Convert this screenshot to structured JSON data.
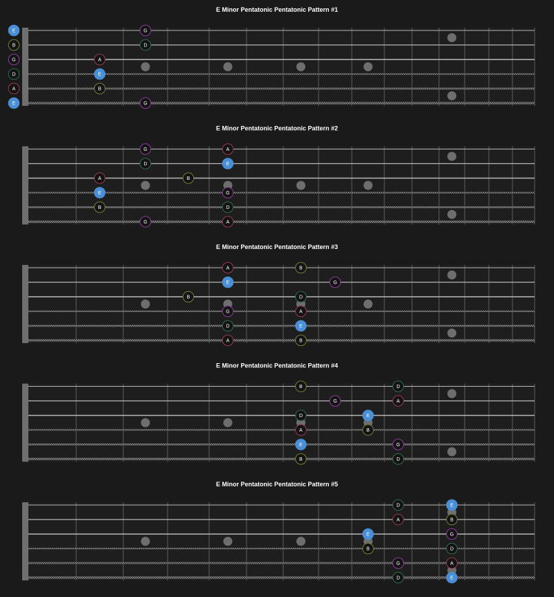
{
  "colors": {
    "background": "#1a1a1a",
    "fretboard": "#1e1e1e",
    "root_note": "#4a8fd6",
    "inlay_dot": "#6e6e6e",
    "nut": "#6f6f6f",
    "fret_line": "#5f5f5f",
    "string_line": "#b8b8b8",
    "note_fill": "#141414",
    "note_rings": {
      "E": "#4a8fd6",
      "G": "#8e3b9e",
      "A": "#9a3a4c",
      "B": "#7a7d34",
      "D": "#2f6d4a"
    }
  },
  "inlay_frets": [
    3,
    5,
    7,
    9,
    12
  ],
  "patterns": [
    {
      "title": "E Minor Pentatonic Pentatonic Pattern #1",
      "open_labels": [
        "E",
        "B",
        "G",
        "D",
        "A",
        "E"
      ],
      "notes": [
        {
          "string": 1,
          "fret": 3,
          "label": "G"
        },
        {
          "string": 2,
          "fret": 3,
          "label": "D"
        },
        {
          "string": 3,
          "fret": 2,
          "label": "A"
        },
        {
          "string": 4,
          "fret": 2,
          "label": "E",
          "root": true
        },
        {
          "string": 5,
          "fret": 2,
          "label": "B"
        },
        {
          "string": 6,
          "fret": 3,
          "label": "G"
        }
      ]
    },
    {
      "title": "E Minor Pentatonic Pentatonic Pattern #2",
      "notes": [
        {
          "string": 1,
          "fret": 3,
          "label": "G"
        },
        {
          "string": 1,
          "fret": 5,
          "label": "A"
        },
        {
          "string": 2,
          "fret": 3,
          "label": "D"
        },
        {
          "string": 2,
          "fret": 5,
          "label": "E",
          "root": true
        },
        {
          "string": 3,
          "fret": 2,
          "label": "A"
        },
        {
          "string": 3,
          "fret": 4,
          "label": "B"
        },
        {
          "string": 4,
          "fret": 2,
          "label": "E",
          "root": true
        },
        {
          "string": 4,
          "fret": 5,
          "label": "G"
        },
        {
          "string": 5,
          "fret": 2,
          "label": "B"
        },
        {
          "string": 5,
          "fret": 5,
          "label": "D"
        },
        {
          "string": 6,
          "fret": 3,
          "label": "G"
        },
        {
          "string": 6,
          "fret": 5,
          "label": "A"
        }
      ]
    },
    {
      "title": "E Minor Pentatonic Pentatonic Pattern #3",
      "notes": [
        {
          "string": 1,
          "fret": 5,
          "label": "A"
        },
        {
          "string": 1,
          "fret": 7,
          "label": "B"
        },
        {
          "string": 2,
          "fret": 5,
          "label": "E",
          "root": true
        },
        {
          "string": 2,
          "fret": 8,
          "label": "G"
        },
        {
          "string": 3,
          "fret": 4,
          "label": "B"
        },
        {
          "string": 3,
          "fret": 7,
          "label": "D"
        },
        {
          "string": 4,
          "fret": 5,
          "label": "G"
        },
        {
          "string": 4,
          "fret": 7,
          "label": "A"
        },
        {
          "string": 5,
          "fret": 5,
          "label": "D"
        },
        {
          "string": 5,
          "fret": 7,
          "label": "E",
          "root": true
        },
        {
          "string": 6,
          "fret": 5,
          "label": "A"
        },
        {
          "string": 6,
          "fret": 7,
          "label": "B"
        }
      ]
    },
    {
      "title": "E Minor Pentatonic Pentatonic Pattern #4",
      "notes": [
        {
          "string": 1,
          "fret": 7,
          "label": "B"
        },
        {
          "string": 1,
          "fret": 10,
          "label": "D"
        },
        {
          "string": 2,
          "fret": 8,
          "label": "G"
        },
        {
          "string": 2,
          "fret": 10,
          "label": "A"
        },
        {
          "string": 3,
          "fret": 7,
          "label": "D"
        },
        {
          "string": 3,
          "fret": 9,
          "label": "E",
          "root": true
        },
        {
          "string": 4,
          "fret": 7,
          "label": "A"
        },
        {
          "string": 4,
          "fret": 9,
          "label": "B"
        },
        {
          "string": 5,
          "fret": 7,
          "label": "E",
          "root": true
        },
        {
          "string": 5,
          "fret": 10,
          "label": "G"
        },
        {
          "string": 6,
          "fret": 7,
          "label": "B"
        },
        {
          "string": 6,
          "fret": 10,
          "label": "D"
        }
      ]
    },
    {
      "title": "E Minor Pentatonic Pentatonic Pattern #5",
      "notes": [
        {
          "string": 1,
          "fret": 10,
          "label": "D"
        },
        {
          "string": 1,
          "fret": 12,
          "label": "E",
          "root": true
        },
        {
          "string": 2,
          "fret": 10,
          "label": "A"
        },
        {
          "string": 2,
          "fret": 12,
          "label": "B"
        },
        {
          "string": 3,
          "fret": 9,
          "label": "E",
          "root": true
        },
        {
          "string": 3,
          "fret": 12,
          "label": "G"
        },
        {
          "string": 4,
          "fret": 9,
          "label": "B"
        },
        {
          "string": 4,
          "fret": 12,
          "label": "D"
        },
        {
          "string": 5,
          "fret": 10,
          "label": "G"
        },
        {
          "string": 5,
          "fret": 12,
          "label": "A"
        },
        {
          "string": 6,
          "fret": 10,
          "label": "D"
        },
        {
          "string": 6,
          "fret": 12,
          "label": "E",
          "root": true
        }
      ]
    }
  ]
}
